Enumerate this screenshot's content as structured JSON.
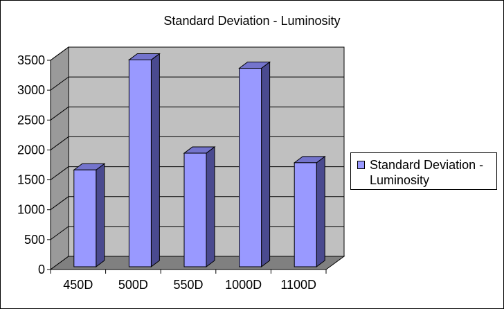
{
  "chart_data": {
    "type": "bar",
    "title": "Standard Deviation - Luminosity",
    "categories": [
      "450D",
      "500D",
      "550D",
      "1000D",
      "1100D"
    ],
    "series": [
      {
        "name": "Standard Deviation - Luminosity",
        "values": [
          1620,
          3460,
          1900,
          3320,
          1740
        ]
      }
    ],
    "ylim": [
      0,
      3500
    ],
    "yticks": [
      "0",
      "500",
      "1000",
      "1500",
      "2000",
      "2500",
      "3000",
      "3500"
    ],
    "grid": true,
    "legend_position": "right",
    "colors": {
      "bar_front": "#9999ff",
      "bar_side": "#4a4a8f",
      "bar_top": "#7474cc",
      "wall": "#c0c0c0",
      "floor": "#808080",
      "side_wall": "#9a9a9a"
    }
  }
}
